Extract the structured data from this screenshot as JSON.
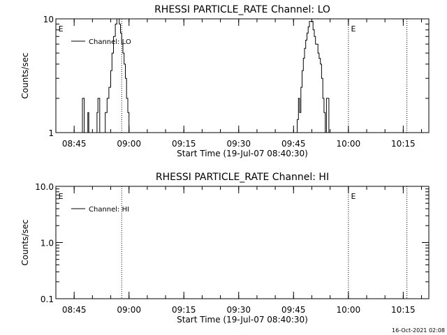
{
  "chart_data": [
    {
      "type": "line",
      "title": "RHESSI PARTICLE_RATE Channel: LO",
      "xlabel": "Start Time (19-Jul-07 08:40:30)",
      "ylabel": "Counts/sec",
      "y_scale": "log",
      "ylim": [
        1,
        10
      ],
      "y_ticks": [
        {
          "value": 1,
          "label": "1"
        },
        {
          "value": 10,
          "label": "10"
        }
      ],
      "xlim": [
        "08:40",
        "10:22"
      ],
      "x_ticks": [
        "08:45",
        "09:00",
        "09:15",
        "09:30",
        "09:45",
        "10:00",
        "10:15"
      ],
      "series": [
        {
          "name": "Channel: LO",
          "x": [
            "08:46:00",
            "08:47:00",
            "08:47:15",
            "08:47:30",
            "08:47:45",
            "08:48:00",
            "08:48:30",
            "08:48:45",
            "08:49:00",
            "08:50:00",
            "08:51:00",
            "08:51:15",
            "08:51:30",
            "08:52:00",
            "08:52:20",
            "08:53:00",
            "08:53:30",
            "08:54:00",
            "08:54:30",
            "08:55:00",
            "08:55:20",
            "08:55:45",
            "08:56:15",
            "08:56:40",
            "08:57:00",
            "08:57:20",
            "08:57:40",
            "08:58:00",
            "08:58:20",
            "08:58:40",
            "08:59:00",
            "08:59:20",
            "08:59:40",
            "09:00:00",
            "09:00:20",
            "09:00:40",
            "09:01:00",
            "09:01:20",
            "09:01:40",
            "09:02:00",
            "09:03:00",
            "09:45:00",
            "09:45:30",
            "09:46:00",
            "09:46:20",
            "09:46:40",
            "09:47:00",
            "09:47:20",
            "09:47:40",
            "09:48:00",
            "09:48:20",
            "09:48:40",
            "09:49:00",
            "09:49:20",
            "09:49:40",
            "09:50:00",
            "09:50:20",
            "09:50:40",
            "09:51:00",
            "09:51:20",
            "09:51:40",
            "09:52:00",
            "09:52:20",
            "09:52:40",
            "09:53:00",
            "09:53:20",
            "09:53:40",
            "09:54:00",
            "09:54:20",
            "09:54:40",
            "09:55:00",
            "09:55:20",
            "09:55:40",
            "09:56:00",
            "09:56:20",
            "09:56:40",
            "09:57:00",
            "09:58:00"
          ],
          "values": [
            1,
            1,
            2,
            2,
            1,
            1,
            1,
            1.5,
            1,
            1,
            1,
            1.5,
            2,
            1,
            1,
            1,
            1.5,
            2,
            2.5,
            3.5,
            5,
            7,
            9,
            10,
            10,
            9,
            7.5,
            6,
            5,
            4,
            3,
            2,
            1.5,
            1,
            1,
            1,
            1,
            1,
            1,
            1,
            1,
            1,
            1,
            1.3,
            2,
            1.5,
            2.5,
            3.5,
            4.5,
            5.5,
            6.5,
            7.5,
            8.5,
            9.5,
            9.5,
            9.5,
            8,
            7,
            6,
            6,
            5,
            4.5,
            4,
            3,
            2,
            1.5,
            1,
            2,
            2,
            1,
            1,
            1,
            1,
            1,
            1,
            1,
            1,
            1
          ]
        }
      ],
      "vlines": [
        "08:58:00",
        "10:00:00",
        "10:16:00"
      ],
      "flags": [
        {
          "time": "08:40:30",
          "label": "E"
        },
        {
          "time": "10:00:30",
          "label": "E"
        }
      ],
      "legend": "top-left"
    },
    {
      "type": "line",
      "title": "RHESSI PARTICLE_RATE Channel: HI",
      "xlabel": "Start Time (19-Jul-07 08:40:30)",
      "ylabel": "Counts/sec",
      "y_scale": "log",
      "ylim": [
        0.1,
        10
      ],
      "y_ticks": [
        {
          "value": 0.1,
          "label": "0.1"
        },
        {
          "value": 1,
          "label": "1.0"
        },
        {
          "value": 10,
          "label": "10.0"
        }
      ],
      "xlim": [
        "08:40",
        "10:22"
      ],
      "x_ticks": [
        "08:45",
        "09:00",
        "09:15",
        "09:30",
        "09:45",
        "10:00",
        "10:15"
      ],
      "series": [
        {
          "name": "Channel: HI",
          "x": [],
          "values": []
        }
      ],
      "vlines": [
        "08:58:00",
        "10:00:00",
        "10:16:00"
      ],
      "flags": [
        {
          "time": "08:40:30",
          "label": "E"
        },
        {
          "time": "10:00:30",
          "label": "E"
        }
      ],
      "legend": "top-left"
    }
  ],
  "footer": {
    "timestamp": "16-Oct-2021 02:08"
  }
}
